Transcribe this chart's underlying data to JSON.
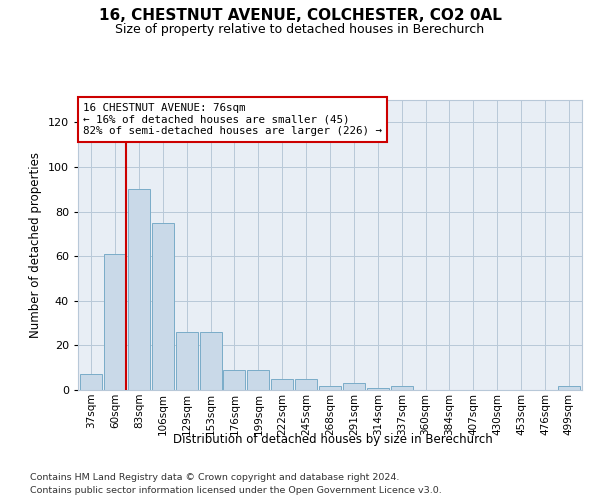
{
  "title": "16, CHESTNUT AVENUE, COLCHESTER, CO2 0AL",
  "subtitle": "Size of property relative to detached houses in Berechurch",
  "xlabel": "Distribution of detached houses by size in Berechurch",
  "ylabel": "Number of detached properties",
  "categories": [
    "37sqm",
    "60sqm",
    "83sqm",
    "106sqm",
    "129sqm",
    "153sqm",
    "176sqm",
    "199sqm",
    "222sqm",
    "245sqm",
    "268sqm",
    "291sqm",
    "314sqm",
    "337sqm",
    "360sqm",
    "384sqm",
    "407sqm",
    "430sqm",
    "453sqm",
    "476sqm",
    "499sqm"
  ],
  "values": [
    7,
    61,
    90,
    75,
    26,
    26,
    9,
    9,
    5,
    5,
    2,
    3,
    1,
    2,
    0,
    0,
    0,
    0,
    0,
    0,
    2
  ],
  "bar_color": "#c9d9e8",
  "bar_edge_color": "#7aacc8",
  "vline_color": "#cc0000",
  "vline_x_index": 1.45,
  "annotation_text": "16 CHESTNUT AVENUE: 76sqm\n← 16% of detached houses are smaller (45)\n82% of semi-detached houses are larger (226) →",
  "annotation_box_color": "#ffffff",
  "annotation_box_edge": "#cc0000",
  "ylim": [
    0,
    130
  ],
  "yticks": [
    0,
    20,
    40,
    60,
    80,
    100,
    120
  ],
  "background_color": "#e8eef5",
  "footer1": "Contains HM Land Registry data © Crown copyright and database right 2024.",
  "footer2": "Contains public sector information licensed under the Open Government Licence v3.0."
}
